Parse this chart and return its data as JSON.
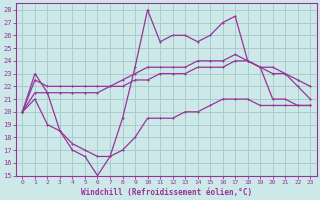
{
  "xlabel": "Windchill (Refroidissement éolien,°C)",
  "background_color": "#cce8e8",
  "grid_color": "#aacccc",
  "line_color": "#993399",
  "xlim": [
    -0.5,
    23.5
  ],
  "ylim": [
    15,
    28.5
  ],
  "xticks": [
    0,
    1,
    2,
    3,
    4,
    5,
    6,
    7,
    8,
    9,
    10,
    11,
    12,
    13,
    14,
    15,
    16,
    17,
    18,
    19,
    20,
    21,
    22,
    23
  ],
  "yticks": [
    15,
    16,
    17,
    18,
    19,
    20,
    21,
    22,
    23,
    24,
    25,
    26,
    27,
    28
  ],
  "line1_x": [
    0,
    1,
    2,
    3,
    4,
    5,
    6,
    7,
    8,
    9,
    10,
    11,
    12,
    13,
    14,
    15,
    16,
    17,
    18,
    19,
    20,
    21,
    22,
    23
  ],
  "line1_y": [
    20,
    23,
    21.5,
    18.5,
    17,
    16.5,
    15.0,
    16.5,
    19.5,
    23.5,
    28,
    25.5,
    26,
    26,
    25.5,
    26,
    27,
    27.5,
    24,
    23.5,
    21,
    21,
    20.5,
    20.5
  ],
  "line2_x": [
    0,
    1,
    2,
    3,
    4,
    5,
    6,
    7,
    8,
    9,
    10,
    11,
    12,
    13,
    14,
    15,
    16,
    17,
    18,
    19,
    20,
    21,
    22,
    23
  ],
  "line2_y": [
    20,
    22.5,
    22,
    22,
    22,
    22,
    22,
    22,
    22.5,
    23,
    23.5,
    23.5,
    23.5,
    23.5,
    24,
    24,
    24,
    24.5,
    24,
    23.5,
    23.5,
    23,
    22,
    21
  ],
  "line3_x": [
    0,
    1,
    2,
    3,
    4,
    5,
    6,
    7,
    8,
    9,
    10,
    11,
    12,
    13,
    14,
    15,
    16,
    17,
    18,
    19,
    20,
    21,
    22,
    23
  ],
  "line3_y": [
    20,
    21.5,
    21.5,
    21.5,
    21.5,
    21.5,
    21.5,
    22,
    22,
    22.5,
    22.5,
    23,
    23,
    23,
    23.5,
    23.5,
    23.5,
    24,
    24,
    23.5,
    23,
    23,
    22.5,
    22
  ],
  "line4_x": [
    0,
    1,
    2,
    3,
    4,
    5,
    6,
    7,
    8,
    9,
    10,
    11,
    12,
    13,
    14,
    15,
    16,
    17,
    18,
    19,
    20,
    21,
    22,
    23
  ],
  "line4_y": [
    20,
    21,
    19,
    18.5,
    17.5,
    17,
    16.5,
    16.5,
    17,
    18,
    19.5,
    19.5,
    19.5,
    20,
    20,
    20.5,
    21,
    21,
    21,
    20.5,
    20.5,
    20.5,
    20.5,
    20.5
  ]
}
